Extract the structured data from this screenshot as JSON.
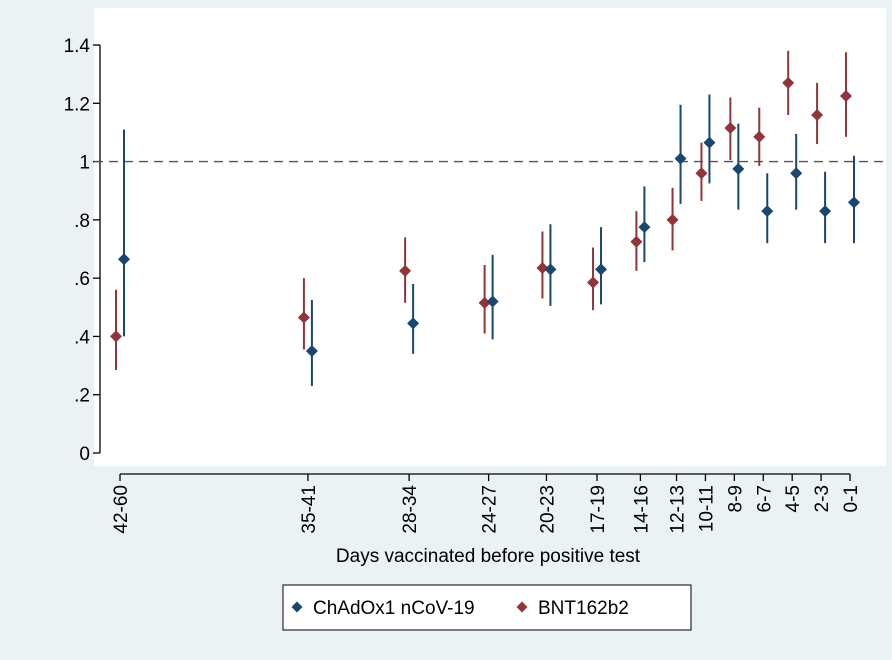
{
  "chart_data": {
    "type": "scatter",
    "title": "",
    "xlabel": "Days vaccinated before positive test",
    "ylabel": "",
    "ylim": [
      0,
      1.4
    ],
    "yticks": [
      {
        "value": 0,
        "label": "0"
      },
      {
        "value": 0.2,
        "label": ".2"
      },
      {
        "value": 0.4,
        "label": ".4"
      },
      {
        "value": 0.6,
        "label": ".6"
      },
      {
        "value": 0.8,
        "label": ".8"
      },
      {
        "value": 1.0,
        "label": "1"
      },
      {
        "value": 1.2,
        "label": "1.2"
      },
      {
        "value": 1.4,
        "label": "1.4"
      }
    ],
    "categories": [
      "42-60",
      "35-41",
      "28-34",
      "24-27",
      "20-23",
      "17-19",
      "14-16",
      "12-13",
      "10-11",
      "8-9",
      "6-7",
      "4-5",
      "2-3",
      "0-1"
    ],
    "category_positions": [
      51,
      38,
      31,
      25.5,
      21.5,
      18,
      15,
      12.5,
      10.5,
      8.5,
      6.5,
      4.5,
      2.5,
      0.5
    ],
    "x_reversed": true,
    "reference_line": {
      "y": 1.0,
      "style": "dashed"
    },
    "grid": false,
    "legend_position": "bottom",
    "series": [
      {
        "name": "ChAdOx1 nCoV-19",
        "color": "#1a476f",
        "marker": "diamond",
        "values": [
          0.665,
          0.35,
          0.445,
          0.52,
          0.63,
          0.63,
          0.775,
          1.01,
          1.065,
          0.975,
          0.83,
          0.96,
          0.83,
          0.86
        ],
        "lower": [
          0.4,
          0.23,
          0.34,
          0.39,
          0.505,
          0.51,
          0.655,
          0.855,
          0.925,
          0.835,
          0.72,
          0.835,
          0.72,
          0.72
        ],
        "upper": [
          1.11,
          0.525,
          0.58,
          0.68,
          0.785,
          0.775,
          0.915,
          1.195,
          1.23,
          1.13,
          0.96,
          1.095,
          0.965,
          1.02
        ]
      },
      {
        "name": "BNT162b2",
        "color": "#90353b",
        "marker": "diamond",
        "values": [
          0.4,
          0.465,
          0.625,
          0.515,
          0.635,
          0.585,
          0.725,
          0.8,
          0.96,
          1.115,
          1.085,
          1.27,
          1.16,
          1.225
        ],
        "lower": [
          0.285,
          0.355,
          0.515,
          0.41,
          0.53,
          0.49,
          0.625,
          0.695,
          0.865,
          1.005,
          0.985,
          1.16,
          1.06,
          1.085
        ],
        "upper": [
          0.56,
          0.6,
          0.74,
          0.645,
          0.76,
          0.705,
          0.83,
          0.91,
          1.065,
          1.22,
          1.185,
          1.38,
          1.27,
          1.375
        ]
      }
    ]
  }
}
